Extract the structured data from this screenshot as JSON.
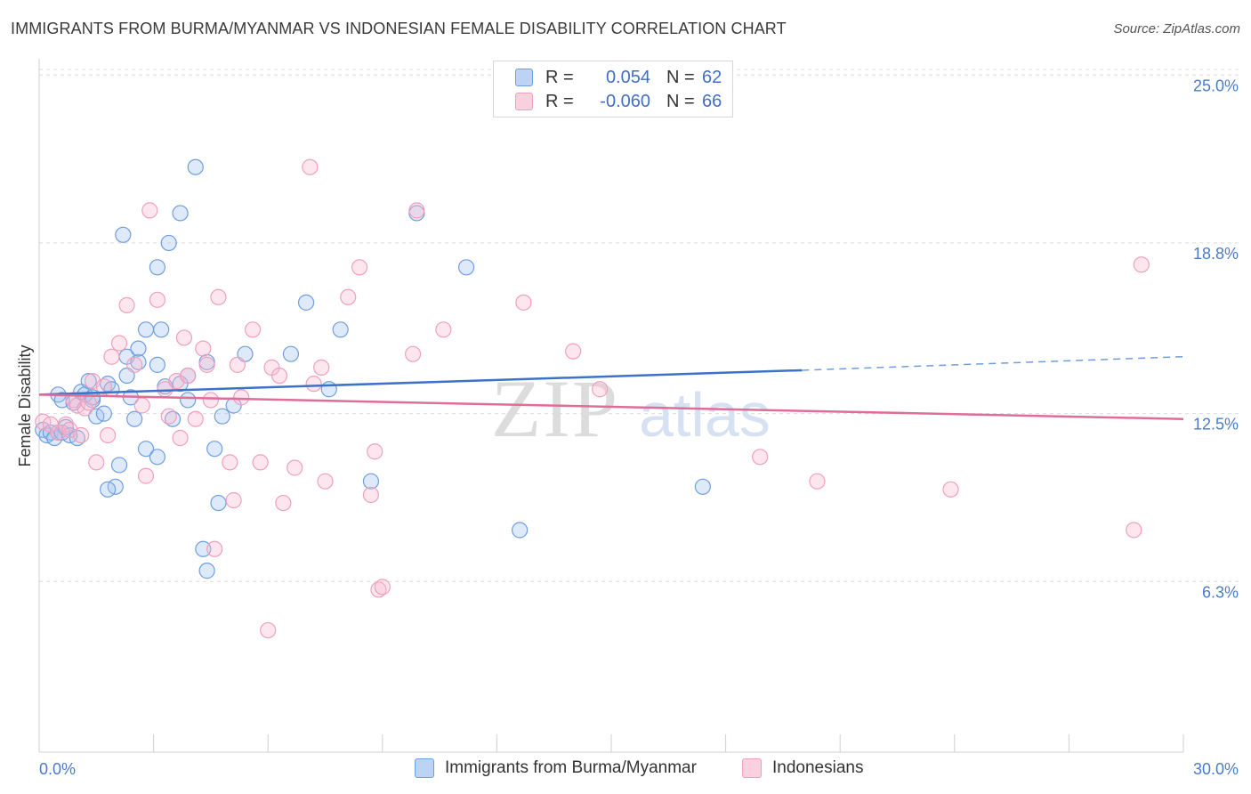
{
  "title": "IMMIGRANTS FROM BURMA/MYANMAR VS INDONESIAN FEMALE DISABILITY CORRELATION CHART",
  "source": "Source: ZipAtlas.com",
  "watermark": {
    "zip": "ZIP",
    "atlas": "atlas"
  },
  "legend": {
    "rows": [
      {
        "r_label": "R =",
        "r_value": "0.054",
        "n_label": "N =",
        "n_value": "62",
        "color": "#6f9ee0"
      },
      {
        "r_label": "R =",
        "r_value": "-0.060",
        "n_label": "N =",
        "n_value": "66",
        "color": "#f0a0bc"
      }
    ]
  },
  "bottom_legend": [
    {
      "label": "Immigrants from Burma/Myanmar",
      "color": "#6f9ee0"
    },
    {
      "label": "Indonesians",
      "color": "#f0a0bc"
    }
  ],
  "chart_data": {
    "type": "scatter",
    "title": "IMMIGRANTS FROM BURMA/MYANMAR VS INDONESIAN FEMALE DISABILITY CORRELATION CHART",
    "xlabel": "",
    "ylabel": "Female Disability",
    "xlim": [
      0,
      30
    ],
    "ylim": [
      0,
      25.6
    ],
    "x_tick_labels": [
      {
        "value": 0,
        "label": "0.0%"
      },
      {
        "value": 30,
        "label": "30.0%"
      }
    ],
    "y_tick_labels": [
      {
        "value": 6.3,
        "label": "6.3%"
      },
      {
        "value": 12.5,
        "label": "12.5%"
      },
      {
        "value": 18.8,
        "label": "18.8%"
      },
      {
        "value": 25.0,
        "label": "25.0%"
      }
    ],
    "grid": true,
    "legend_position": "top-center",
    "series": [
      {
        "name": "Immigrants from Burma/Myanmar",
        "color": "#6f9ee0",
        "trend": {
          "x0": 0,
          "y0": 13.2,
          "x1": 20,
          "y1": 14.1,
          "dashed_to_x": 30,
          "dashed_to_y": 14.6
        },
        "points": [
          [
            0.1,
            11.9
          ],
          [
            0.2,
            11.7
          ],
          [
            0.3,
            11.8
          ],
          [
            0.4,
            11.6
          ],
          [
            0.5,
            11.8
          ],
          [
            0.6,
            11.8
          ],
          [
            0.7,
            12.0
          ],
          [
            0.8,
            11.7
          ],
          [
            1.0,
            11.6
          ],
          [
            0.5,
            13.2
          ],
          [
            0.6,
            13.0
          ],
          [
            0.9,
            12.9
          ],
          [
            1.1,
            13.3
          ],
          [
            1.2,
            13.2
          ],
          [
            1.3,
            13.7
          ],
          [
            1.4,
            13.0
          ],
          [
            1.4,
            13.1
          ],
          [
            1.5,
            12.4
          ],
          [
            1.7,
            12.5
          ],
          [
            1.8,
            13.6
          ],
          [
            1.9,
            13.4
          ],
          [
            2.3,
            13.9
          ],
          [
            2.3,
            14.6
          ],
          [
            2.4,
            13.1
          ],
          [
            2.5,
            12.3
          ],
          [
            2.6,
            14.4
          ],
          [
            2.6,
            14.9
          ],
          [
            2.8,
            15.6
          ],
          [
            2.1,
            10.6
          ],
          [
            2.0,
            9.8
          ],
          [
            1.8,
            9.7
          ],
          [
            2.8,
            11.2
          ],
          [
            3.1,
            10.9
          ],
          [
            3.1,
            14.3
          ],
          [
            3.2,
            15.6
          ],
          [
            3.3,
            13.5
          ],
          [
            3.5,
            12.3
          ],
          [
            3.7,
            13.6
          ],
          [
            3.9,
            13.0
          ],
          [
            3.9,
            13.9
          ],
          [
            3.1,
            17.9
          ],
          [
            3.4,
            18.8
          ],
          [
            3.7,
            19.9
          ],
          [
            2.2,
            19.1
          ],
          [
            4.1,
            21.6
          ],
          [
            4.4,
            14.4
          ],
          [
            4.6,
            11.2
          ],
          [
            4.8,
            12.4
          ],
          [
            5.1,
            12.8
          ],
          [
            5.4,
            14.7
          ],
          [
            4.7,
            9.2
          ],
          [
            4.3,
            7.5
          ],
          [
            4.4,
            6.7
          ],
          [
            6.6,
            14.7
          ],
          [
            7.0,
            16.6
          ],
          [
            7.6,
            13.4
          ],
          [
            7.9,
            15.6
          ],
          [
            8.7,
            10.0
          ],
          [
            9.9,
            19.9
          ],
          [
            11.2,
            17.9
          ],
          [
            12.6,
            8.2
          ],
          [
            17.4,
            9.8
          ]
        ]
      },
      {
        "name": "Indonesians",
        "color": "#f0a0bc",
        "trend": {
          "x0": 0,
          "y0": 13.2,
          "x1": 30,
          "y1": 12.3
        },
        "points": [
          [
            0.1,
            12.2
          ],
          [
            0.3,
            12.1
          ],
          [
            0.5,
            11.8
          ],
          [
            0.7,
            12.1
          ],
          [
            0.8,
            11.9
          ],
          [
            0.9,
            13.0
          ],
          [
            1.0,
            12.8
          ],
          [
            1.2,
            12.7
          ],
          [
            1.3,
            12.9
          ],
          [
            1.4,
            13.7
          ],
          [
            1.5,
            10.7
          ],
          [
            1.7,
            13.5
          ],
          [
            1.8,
            11.7
          ],
          [
            1.9,
            14.6
          ],
          [
            2.1,
            15.1
          ],
          [
            2.3,
            16.5
          ],
          [
            2.5,
            14.3
          ],
          [
            2.7,
            12.8
          ],
          [
            2.8,
            10.2
          ],
          [
            2.9,
            20.0
          ],
          [
            3.1,
            16.7
          ],
          [
            3.3,
            13.4
          ],
          [
            3.4,
            12.4
          ],
          [
            3.6,
            13.7
          ],
          [
            3.7,
            11.6
          ],
          [
            3.8,
            15.3
          ],
          [
            3.9,
            13.9
          ],
          [
            4.1,
            12.3
          ],
          [
            4.3,
            14.9
          ],
          [
            4.4,
            14.3
          ],
          [
            4.5,
            13.0
          ],
          [
            4.6,
            7.5
          ],
          [
            4.7,
            16.8
          ],
          [
            5.0,
            10.7
          ],
          [
            5.1,
            9.3
          ],
          [
            5.2,
            14.3
          ],
          [
            5.3,
            13.1
          ],
          [
            5.6,
            15.6
          ],
          [
            5.8,
            10.7
          ],
          [
            6.1,
            14.2
          ],
          [
            6.0,
            4.5
          ],
          [
            6.3,
            13.9
          ],
          [
            6.4,
            9.2
          ],
          [
            6.7,
            10.5
          ],
          [
            7.1,
            21.6
          ],
          [
            7.2,
            13.6
          ],
          [
            7.4,
            14.2
          ],
          [
            7.5,
            10.0
          ],
          [
            8.1,
            16.8
          ],
          [
            8.4,
            17.9
          ],
          [
            8.7,
            9.5
          ],
          [
            8.8,
            11.1
          ],
          [
            8.9,
            6.0
          ],
          [
            9.0,
            6.1
          ],
          [
            9.8,
            14.7
          ],
          [
            9.9,
            20.0
          ],
          [
            10.6,
            15.6
          ],
          [
            12.7,
            16.6
          ],
          [
            14.0,
            14.8
          ],
          [
            14.7,
            13.4
          ],
          [
            18.9,
            10.9
          ],
          [
            20.4,
            10.0
          ],
          [
            23.9,
            9.7
          ],
          [
            28.7,
            8.2
          ],
          [
            28.9,
            18.0
          ],
          [
            1.1,
            11.7
          ]
        ]
      }
    ]
  }
}
